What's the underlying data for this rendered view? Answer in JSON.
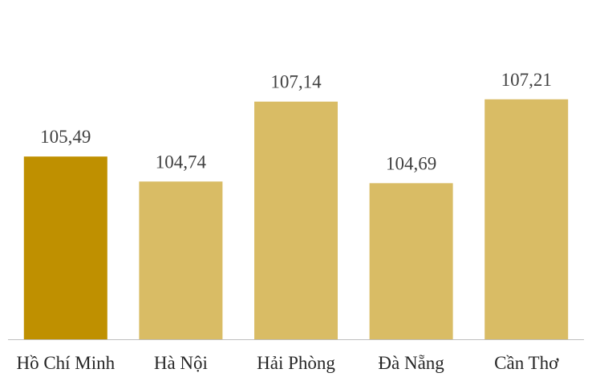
{
  "chart_data": {
    "type": "bar",
    "categories": [
      "Hồ Chí Minh",
      "Hà Nội",
      "Hải Phòng",
      "Đà Nẵng",
      "Cần Thơ"
    ],
    "values": [
      105.49,
      104.74,
      107.14,
      104.69,
      107.21
    ],
    "value_labels": [
      "105,49",
      "104,74",
      "107,14",
      "104,69",
      "107,21"
    ],
    "title": "",
    "xlabel": "",
    "ylabel": "",
    "ylim": [
      100,
      108
    ],
    "grid": false,
    "legend": "none",
    "highlight_index": 0,
    "colors": {
      "highlight": "#BF9000",
      "bar": "#D9BC65",
      "axis": "#BFBFBF"
    }
  }
}
